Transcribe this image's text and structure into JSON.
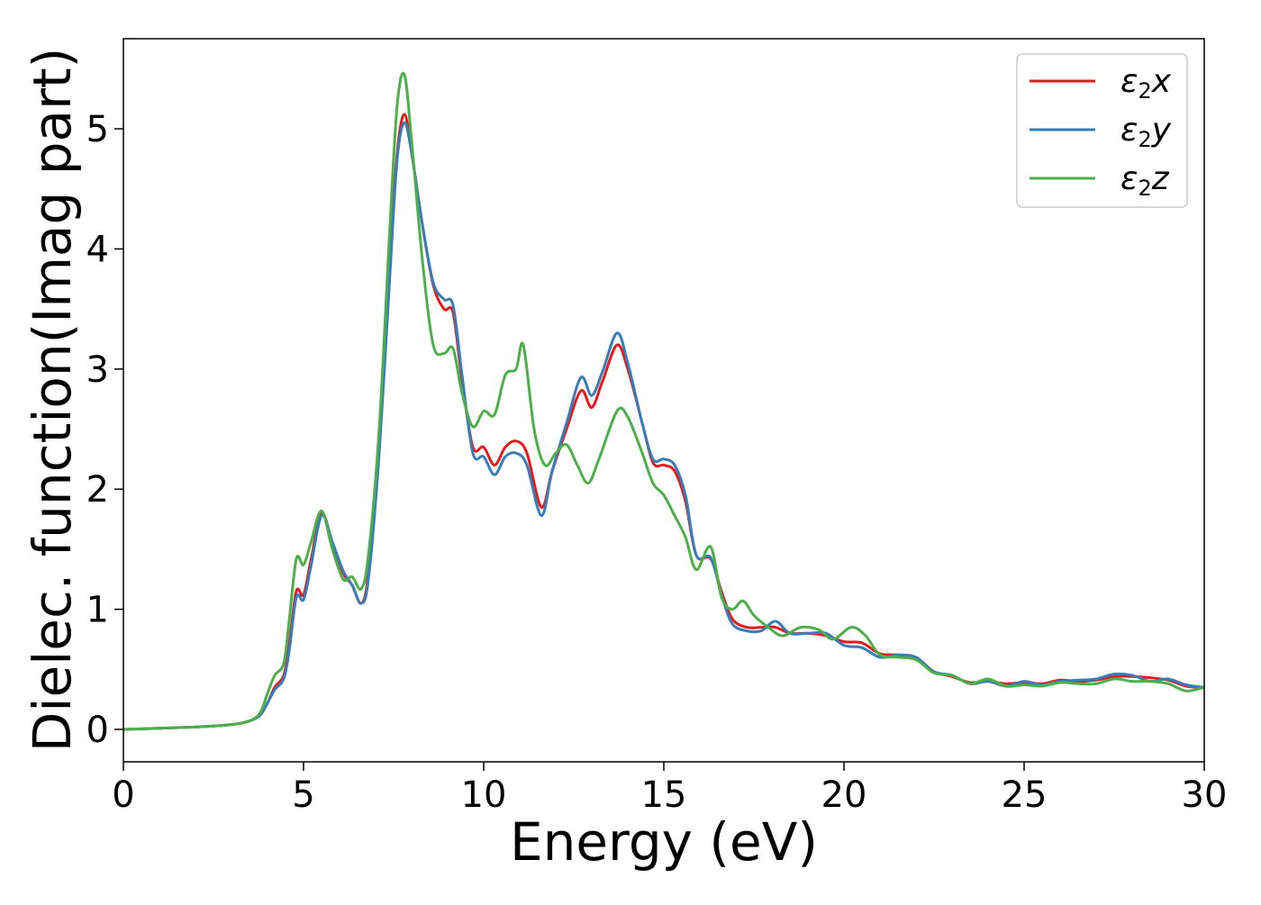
{
  "chart_data": {
    "type": "line",
    "title": "",
    "xlabel": "Energy (eV)",
    "ylabel": "Dielec. function(Imag part)",
    "xlim": [
      0,
      30
    ],
    "ylim": [
      -0.27,
      5.75
    ],
    "xticks": [
      0,
      5,
      10,
      15,
      20,
      25,
      30
    ],
    "xtick_labels": [
      "0",
      "5",
      "10",
      "15",
      "20",
      "25",
      "30"
    ],
    "yticks": [
      0,
      1,
      2,
      3,
      4,
      5
    ],
    "ytick_labels": [
      "0",
      "1",
      "2",
      "3",
      "4",
      "5"
    ],
    "grid": false,
    "legend_position": "top-right",
    "series": [
      {
        "name": "ε₂x",
        "legend_main": "ε",
        "legend_sub": "2",
        "legend_tail": "x",
        "color": "#e41a1c",
        "points": [
          [
            0,
            0
          ],
          [
            2,
            0.02
          ],
          [
            3,
            0.04
          ],
          [
            3.5,
            0.07
          ],
          [
            3.8,
            0.12
          ],
          [
            4.0,
            0.22
          ],
          [
            4.2,
            0.35
          ],
          [
            4.45,
            0.45
          ],
          [
            4.6,
            0.7
          ],
          [
            4.8,
            1.15
          ],
          [
            5.0,
            1.12
          ],
          [
            5.2,
            1.4
          ],
          [
            5.5,
            1.8
          ],
          [
            5.8,
            1.55
          ],
          [
            6.1,
            1.3
          ],
          [
            6.35,
            1.2
          ],
          [
            6.6,
            1.05
          ],
          [
            6.8,
            1.3
          ],
          [
            7.1,
            2.4
          ],
          [
            7.4,
            3.9
          ],
          [
            7.6,
            4.8
          ],
          [
            7.8,
            5.12
          ],
          [
            8.0,
            4.8
          ],
          [
            8.3,
            4.2
          ],
          [
            8.6,
            3.7
          ],
          [
            8.9,
            3.5
          ],
          [
            9.15,
            3.47
          ],
          [
            9.4,
            2.9
          ],
          [
            9.7,
            2.35
          ],
          [
            10.0,
            2.35
          ],
          [
            10.3,
            2.2
          ],
          [
            10.6,
            2.35
          ],
          [
            10.9,
            2.4
          ],
          [
            11.2,
            2.3
          ],
          [
            11.6,
            1.85
          ],
          [
            11.9,
            2.15
          ],
          [
            12.3,
            2.5
          ],
          [
            12.7,
            2.82
          ],
          [
            13.0,
            2.68
          ],
          [
            13.3,
            2.9
          ],
          [
            13.7,
            3.2
          ],
          [
            14.0,
            3.0
          ],
          [
            14.4,
            2.55
          ],
          [
            14.7,
            2.22
          ],
          [
            15.0,
            2.2
          ],
          [
            15.3,
            2.15
          ],
          [
            15.6,
            1.9
          ],
          [
            15.9,
            1.45
          ],
          [
            16.3,
            1.42
          ],
          [
            16.6,
            1.15
          ],
          [
            16.9,
            0.92
          ],
          [
            17.3,
            0.85
          ],
          [
            17.7,
            0.85
          ],
          [
            18.1,
            0.85
          ],
          [
            18.5,
            0.8
          ],
          [
            19.0,
            0.8
          ],
          [
            19.5,
            0.78
          ],
          [
            20.0,
            0.73
          ],
          [
            20.5,
            0.72
          ],
          [
            21.0,
            0.63
          ],
          [
            21.5,
            0.62
          ],
          [
            22.0,
            0.6
          ],
          [
            22.5,
            0.48
          ],
          [
            23.0,
            0.44
          ],
          [
            23.5,
            0.39
          ],
          [
            24.0,
            0.4
          ],
          [
            24.5,
            0.38
          ],
          [
            25.0,
            0.39
          ],
          [
            25.5,
            0.38
          ],
          [
            26.0,
            0.41
          ],
          [
            26.5,
            0.4
          ],
          [
            27.0,
            0.41
          ],
          [
            27.5,
            0.44
          ],
          [
            28.0,
            0.44
          ],
          [
            28.5,
            0.43
          ],
          [
            29.0,
            0.41
          ],
          [
            29.5,
            0.36
          ],
          [
            30.0,
            0.35
          ]
        ]
      },
      {
        "name": "ε₂y",
        "legend_main": "ε",
        "legend_sub": "2",
        "legend_tail": "y",
        "color": "#377eb8",
        "points": [
          [
            0,
            0
          ],
          [
            2,
            0.02
          ],
          [
            3,
            0.04
          ],
          [
            3.5,
            0.07
          ],
          [
            3.8,
            0.12
          ],
          [
            4.0,
            0.22
          ],
          [
            4.2,
            0.33
          ],
          [
            4.45,
            0.42
          ],
          [
            4.6,
            0.65
          ],
          [
            4.8,
            1.1
          ],
          [
            5.0,
            1.08
          ],
          [
            5.2,
            1.35
          ],
          [
            5.5,
            1.78
          ],
          [
            5.8,
            1.56
          ],
          [
            6.1,
            1.32
          ],
          [
            6.35,
            1.2
          ],
          [
            6.6,
            1.05
          ],
          [
            6.8,
            1.25
          ],
          [
            7.1,
            2.3
          ],
          [
            7.4,
            3.8
          ],
          [
            7.6,
            4.75
          ],
          [
            7.8,
            5.05
          ],
          [
            8.0,
            4.8
          ],
          [
            8.3,
            4.2
          ],
          [
            8.6,
            3.72
          ],
          [
            8.9,
            3.58
          ],
          [
            9.15,
            3.53
          ],
          [
            9.4,
            2.95
          ],
          [
            9.7,
            2.3
          ],
          [
            10.0,
            2.27
          ],
          [
            10.3,
            2.12
          ],
          [
            10.6,
            2.27
          ],
          [
            10.9,
            2.3
          ],
          [
            11.2,
            2.2
          ],
          [
            11.6,
            1.78
          ],
          [
            11.9,
            2.15
          ],
          [
            12.3,
            2.55
          ],
          [
            12.7,
            2.93
          ],
          [
            13.0,
            2.78
          ],
          [
            13.3,
            2.98
          ],
          [
            13.7,
            3.3
          ],
          [
            14.0,
            3.05
          ],
          [
            14.4,
            2.55
          ],
          [
            14.7,
            2.25
          ],
          [
            15.0,
            2.25
          ],
          [
            15.3,
            2.2
          ],
          [
            15.6,
            1.95
          ],
          [
            15.9,
            1.45
          ],
          [
            16.3,
            1.43
          ],
          [
            16.6,
            1.12
          ],
          [
            16.9,
            0.88
          ],
          [
            17.3,
            0.82
          ],
          [
            17.7,
            0.82
          ],
          [
            18.1,
            0.9
          ],
          [
            18.5,
            0.8
          ],
          [
            19.0,
            0.8
          ],
          [
            19.5,
            0.8
          ],
          [
            20.0,
            0.7
          ],
          [
            20.5,
            0.68
          ],
          [
            21.0,
            0.6
          ],
          [
            21.5,
            0.62
          ],
          [
            22.0,
            0.6
          ],
          [
            22.5,
            0.48
          ],
          [
            23.0,
            0.45
          ],
          [
            23.5,
            0.38
          ],
          [
            24.0,
            0.4
          ],
          [
            24.5,
            0.36
          ],
          [
            25.0,
            0.4
          ],
          [
            25.5,
            0.37
          ],
          [
            26.0,
            0.4
          ],
          [
            26.5,
            0.41
          ],
          [
            27.0,
            0.42
          ],
          [
            27.5,
            0.46
          ],
          [
            28.0,
            0.45
          ],
          [
            28.5,
            0.4
          ],
          [
            29.0,
            0.42
          ],
          [
            29.5,
            0.37
          ],
          [
            30.0,
            0.35
          ]
        ]
      },
      {
        "name": "ε₂z",
        "legend_main": "ε",
        "legend_sub": "2",
        "legend_tail": "z",
        "color": "#4daf4a",
        "points": [
          [
            0,
            0
          ],
          [
            2,
            0.02
          ],
          [
            3,
            0.04
          ],
          [
            3.5,
            0.07
          ],
          [
            3.8,
            0.14
          ],
          [
            4.0,
            0.3
          ],
          [
            4.2,
            0.45
          ],
          [
            4.45,
            0.55
          ],
          [
            4.6,
            0.9
          ],
          [
            4.8,
            1.42
          ],
          [
            5.0,
            1.37
          ],
          [
            5.2,
            1.55
          ],
          [
            5.5,
            1.82
          ],
          [
            5.8,
            1.5
          ],
          [
            6.1,
            1.25
          ],
          [
            6.35,
            1.27
          ],
          [
            6.6,
            1.17
          ],
          [
            6.8,
            1.45
          ],
          [
            7.1,
            2.5
          ],
          [
            7.4,
            4.2
          ],
          [
            7.6,
            5.2
          ],
          [
            7.8,
            5.45
          ],
          [
            8.0,
            4.9
          ],
          [
            8.3,
            3.9
          ],
          [
            8.6,
            3.2
          ],
          [
            8.9,
            3.13
          ],
          [
            9.15,
            3.17
          ],
          [
            9.4,
            2.8
          ],
          [
            9.7,
            2.52
          ],
          [
            10.0,
            2.65
          ],
          [
            10.3,
            2.62
          ],
          [
            10.6,
            2.95
          ],
          [
            10.9,
            3.0
          ],
          [
            11.1,
            3.2
          ],
          [
            11.4,
            2.5
          ],
          [
            11.7,
            2.2
          ],
          [
            12.0,
            2.3
          ],
          [
            12.3,
            2.37
          ],
          [
            12.6,
            2.2
          ],
          [
            12.9,
            2.05
          ],
          [
            13.2,
            2.25
          ],
          [
            13.7,
            2.65
          ],
          [
            14.0,
            2.6
          ],
          [
            14.4,
            2.3
          ],
          [
            14.7,
            2.05
          ],
          [
            15.0,
            1.95
          ],
          [
            15.3,
            1.78
          ],
          [
            15.6,
            1.6
          ],
          [
            15.9,
            1.33
          ],
          [
            16.3,
            1.52
          ],
          [
            16.6,
            1.1
          ],
          [
            16.9,
            1.0
          ],
          [
            17.2,
            1.07
          ],
          [
            17.5,
            0.95
          ],
          [
            17.9,
            0.85
          ],
          [
            18.3,
            0.78
          ],
          [
            18.8,
            0.85
          ],
          [
            19.3,
            0.83
          ],
          [
            19.7,
            0.75
          ],
          [
            20.2,
            0.85
          ],
          [
            20.6,
            0.78
          ],
          [
            21.0,
            0.62
          ],
          [
            21.5,
            0.6
          ],
          [
            22.0,
            0.58
          ],
          [
            22.5,
            0.47
          ],
          [
            23.0,
            0.45
          ],
          [
            23.5,
            0.38
          ],
          [
            24.0,
            0.42
          ],
          [
            24.5,
            0.36
          ],
          [
            25.0,
            0.37
          ],
          [
            25.5,
            0.36
          ],
          [
            26.0,
            0.39
          ],
          [
            26.5,
            0.38
          ],
          [
            27.0,
            0.38
          ],
          [
            27.5,
            0.42
          ],
          [
            28.0,
            0.4
          ],
          [
            28.5,
            0.4
          ],
          [
            29.0,
            0.38
          ],
          [
            29.5,
            0.32
          ],
          [
            30.0,
            0.35
          ]
        ]
      }
    ]
  }
}
